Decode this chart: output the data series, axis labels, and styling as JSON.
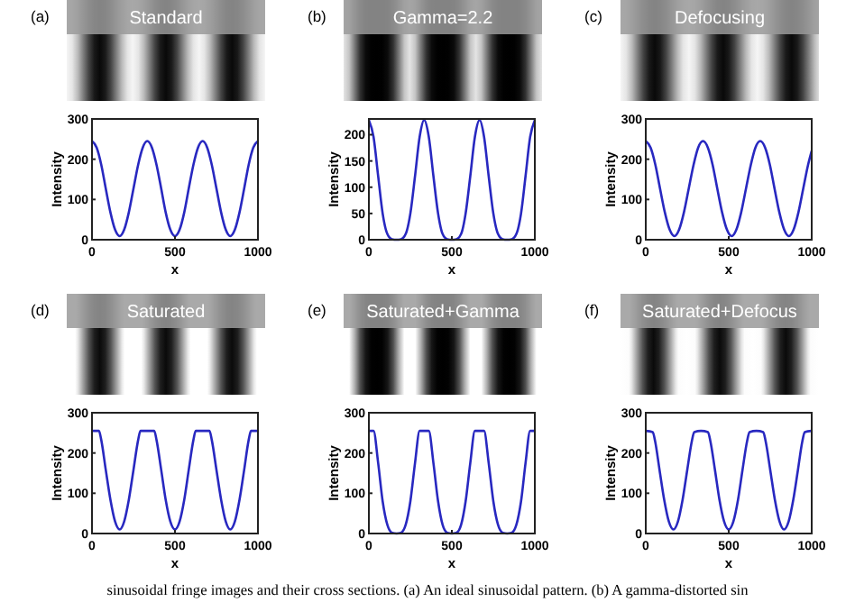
{
  "chart_data": [
    {
      "type": "line",
      "title": "Standard",
      "xlabel": "x",
      "ylabel": "Intensity",
      "annotations": [
        "(a)"
      ],
      "xlim": [
        0,
        1000
      ],
      "xticks": [
        0,
        500,
        1000
      ],
      "ylim": [
        0,
        300
      ],
      "yticks": [
        0,
        100,
        200,
        300
      ],
      "x": [
        0,
        28,
        56,
        83,
        111,
        139,
        167,
        194,
        222,
        250,
        278,
        306,
        333,
        361,
        389,
        417,
        444,
        472,
        500,
        528,
        556,
        583,
        611,
        639,
        667,
        694,
        722,
        750,
        778,
        806,
        833,
        861,
        889,
        917,
        944,
        972,
        1000
      ],
      "series": [
        {
          "color": "#2828c0",
          "values": [
            245,
            229,
            186,
            127,
            68,
            25,
            9,
            25,
            68,
            127,
            186,
            229,
            245,
            229,
            186,
            127,
            68,
            25,
            9,
            25,
            68,
            127,
            186,
            229,
            245,
            229,
            186,
            127,
            68,
            25,
            9,
            25,
            68,
            127,
            186,
            229,
            245
          ]
        }
      ]
    },
    {
      "type": "line",
      "title": "Gamma=2.2",
      "xlabel": "x",
      "ylabel": "Intensity",
      "annotations": [
        "(b)"
      ],
      "xlim": [
        0,
        1000
      ],
      "xticks": [
        0,
        500,
        1000
      ],
      "ylim": [
        0,
        230
      ],
      "yticks": [
        0,
        50,
        100,
        150,
        200
      ],
      "x": [
        0,
        28,
        56,
        83,
        111,
        139,
        167,
        194,
        222,
        250,
        278,
        306,
        333,
        361,
        389,
        417,
        444,
        472,
        500,
        528,
        556,
        583,
        611,
        639,
        667,
        694,
        722,
        750,
        778,
        806,
        833,
        861,
        889,
        917,
        944,
        972,
        1000
      ],
      "series": [
        {
          "color": "#2828c0",
          "values": [
            228,
            196,
            121,
            50,
            11,
            1,
            0,
            1,
            11,
            50,
            121,
            196,
            228,
            196,
            121,
            50,
            11,
            1,
            0,
            1,
            11,
            50,
            121,
            196,
            228,
            196,
            121,
            50,
            11,
            1,
            0,
            1,
            11,
            50,
            121,
            196,
            228
          ]
        }
      ]
    },
    {
      "type": "line",
      "title": "Defocusing",
      "xlabel": "x",
      "ylabel": "Intensity",
      "annotations": [
        "(c)"
      ],
      "xlim": [
        0,
        1000
      ],
      "xticks": [
        0,
        500,
        1000
      ],
      "ylim": [
        0,
        300
      ],
      "yticks": [
        0,
        100,
        200,
        300
      ],
      "x": [
        0,
        29,
        58,
        86,
        115,
        144,
        173,
        201,
        230,
        259,
        288,
        316,
        345,
        374,
        403,
        431,
        460,
        489,
        518,
        546,
        575,
        604,
        633,
        661,
        690,
        719,
        748,
        776,
        805,
        834,
        863,
        891,
        920,
        949,
        978,
        1000
      ],
      "series": [
        {
          "color": "#2828c0",
          "values": [
            245,
            229,
            186,
            127,
            68,
            25,
            9,
            25,
            68,
            127,
            186,
            229,
            245,
            229,
            186,
            127,
            68,
            25,
            9,
            25,
            68,
            127,
            186,
            229,
            245,
            229,
            186,
            127,
            68,
            25,
            9,
            25,
            68,
            127,
            186,
            221
          ]
        }
      ]
    },
    {
      "type": "line",
      "title": "Saturated",
      "xlabel": "x",
      "ylabel": "Intensity",
      "annotations": [
        "(d)",
        "sinusoidal fringe images and their cross sections. (a) An ideal sinusoidal pattern. (b) A gamma-distorted sin"
      ],
      "xlim": [
        0,
        1000
      ],
      "xticks": [
        0,
        500,
        1000
      ],
      "ylim": [
        0,
        300
      ],
      "yticks": [
        0,
        100,
        200,
        300
      ],
      "x": [
        0,
        42,
        56,
        83,
        111,
        139,
        167,
        194,
        222,
        250,
        278,
        292,
        333,
        375,
        389,
        417,
        444,
        472,
        500,
        528,
        556,
        583,
        611,
        625,
        667,
        708,
        722,
        750,
        778,
        806,
        833,
        861,
        889,
        917,
        944,
        958,
        1000
      ],
      "series": [
        {
          "color": "#2828c0",
          "values": [
            255,
            255,
            232,
            158,
            84,
            30,
            10,
            30,
            84,
            158,
            232,
            255,
            255,
            255,
            232,
            158,
            84,
            30,
            10,
            30,
            84,
            158,
            232,
            255,
            255,
            255,
            232,
            158,
            84,
            30,
            10,
            30,
            84,
            158,
            232,
            255,
            255
          ]
        }
      ]
    },
    {
      "type": "line",
      "title": "Saturated+Gamma",
      "xlabel": "x",
      "ylabel": "Intensity",
      "annotations": [
        "(e)"
      ],
      "xlim": [
        0,
        1000
      ],
      "xticks": [
        0,
        500,
        1000
      ],
      "ylim": [
        0,
        300
      ],
      "yticks": [
        0,
        100,
        200,
        300
      ],
      "x": [
        0,
        28,
        56,
        83,
        111,
        139,
        167,
        194,
        222,
        250,
        278,
        306,
        333,
        361,
        389,
        417,
        444,
        472,
        500,
        528,
        556,
        583,
        611,
        639,
        667,
        694,
        722,
        750,
        778,
        806,
        833,
        861,
        889,
        917,
        944,
        972,
        1000
      ],
      "series": [
        {
          "color": "#2828c0",
          "values": [
            255,
            255,
            175,
            80,
            22,
            2,
            0,
            2,
            22,
            80,
            175,
            255,
            255,
            255,
            175,
            80,
            22,
            2,
            0,
            2,
            22,
            80,
            175,
            255,
            255,
            255,
            175,
            80,
            22,
            2,
            0,
            2,
            22,
            80,
            175,
            255,
            255
          ]
        }
      ]
    },
    {
      "type": "line",
      "title": "Saturated+Defocus",
      "xlabel": "x",
      "ylabel": "Intensity",
      "annotations": [
        "(f)"
      ],
      "xlim": [
        0,
        1000
      ],
      "xticks": [
        0,
        500,
        1000
      ],
      "ylim": [
        0,
        300
      ],
      "yticks": [
        0,
        100,
        200,
        300
      ],
      "x": [
        0,
        42,
        56,
        83,
        111,
        139,
        167,
        194,
        222,
        250,
        278,
        292,
        333,
        375,
        389,
        417,
        444,
        472,
        500,
        528,
        556,
        583,
        611,
        625,
        667,
        708,
        722,
        750,
        778,
        806,
        833,
        861,
        889,
        917,
        944,
        958,
        1000
      ],
      "series": [
        {
          "color": "#2828c0",
          "values": [
            255,
            252,
            230,
            158,
            84,
            30,
            10,
            30,
            84,
            158,
            230,
            252,
            255,
            252,
            230,
            158,
            84,
            30,
            10,
            30,
            84,
            158,
            230,
            252,
            255,
            252,
            230,
            158,
            84,
            30,
            10,
            30,
            84,
            158,
            230,
            252,
            255
          ]
        }
      ]
    }
  ]
}
